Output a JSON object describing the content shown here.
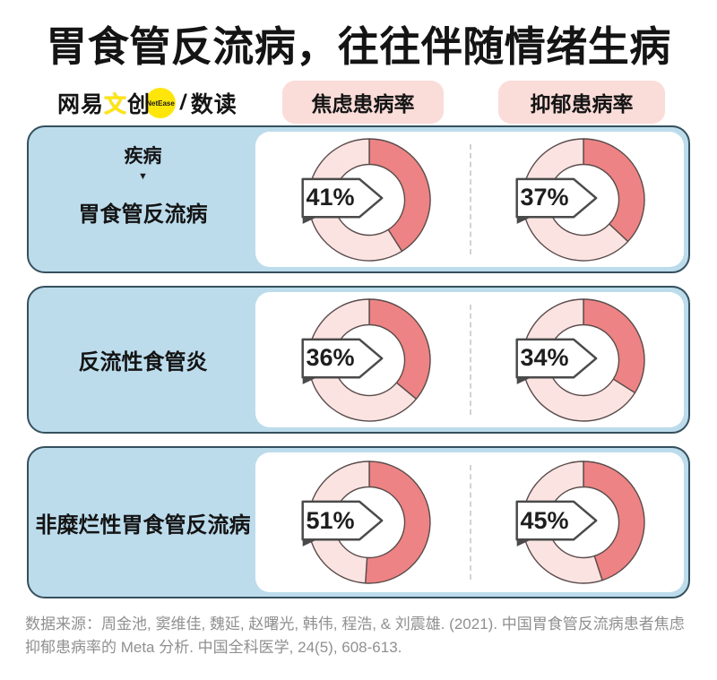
{
  "title": "胃食管反流病，往往伴随情绪生病",
  "logo": {
    "brand_pre": "网易",
    "brand_mid": "文",
    "brand_post": "创",
    "badge": "NetEase",
    "separator": "/",
    "sub": "数读"
  },
  "columns": [
    {
      "label": "焦虑患病率"
    },
    {
      "label": "抑郁患病率"
    }
  ],
  "row_header": {
    "label": "疾病",
    "arrow": "▼"
  },
  "rows": [
    {
      "label": "胃食管反流病",
      "values": [
        {
          "pct": 41,
          "display": "41%"
        },
        {
          "pct": 37,
          "display": "37%"
        }
      ]
    },
    {
      "label": "反流性食管炎",
      "values": [
        {
          "pct": 36,
          "display": "36%"
        },
        {
          "pct": 34,
          "display": "34%"
        }
      ]
    },
    {
      "label": "非糜烂性胃食管反流病",
      "values": [
        {
          "pct": 51,
          "display": "51%"
        },
        {
          "pct": 45,
          "display": "45%"
        }
      ]
    }
  ],
  "source": "数据来源：周金池, 窦维佳, 魏延, 赵曙光, 韩伟, 程浩, & 刘震雄. (2021). 中国胃食管反流病患者焦虑抑郁患病率的 Meta 分析. 中国全科医学, 24(5), 608-613.",
  "colors": {
    "filled": "#ed8384",
    "unfilled": "#fae3e1",
    "outline": "#5a4b4b",
    "card_blue": "#bcdcec",
    "card_border": "#35505d",
    "pill_bg": "#fadcd8",
    "accent_yellow": "#ffe60a",
    "tag_outline": "#4a4a4a",
    "source_gray": "#909090",
    "text_dark": "#141414"
  },
  "chart_data": {
    "type": "pie",
    "variant": "donut-matrix",
    "title": "胃食管反流病，往往伴随情绪生病",
    "categories": [
      "胃食管反流病",
      "反流性食管炎",
      "非糜烂性胃食管反流病"
    ],
    "series": [
      {
        "name": "焦虑患病率",
        "values": [
          41,
          36,
          51
        ]
      },
      {
        "name": "抑郁患病率",
        "values": [
          37,
          34,
          45
        ]
      }
    ],
    "unit": "%",
    "donut_start_angle_deg": -90,
    "donut_direction": "clockwise",
    "legend_position": "top",
    "source": "周金池, 窦维佳, 魏延, 赵曙光, 韩伟, 程浩, & 刘震雄. (2021). 中国胃食管反流病患者焦虑抑郁患病率的 Meta 分析. 中国全科医学, 24(5), 608-613."
  }
}
